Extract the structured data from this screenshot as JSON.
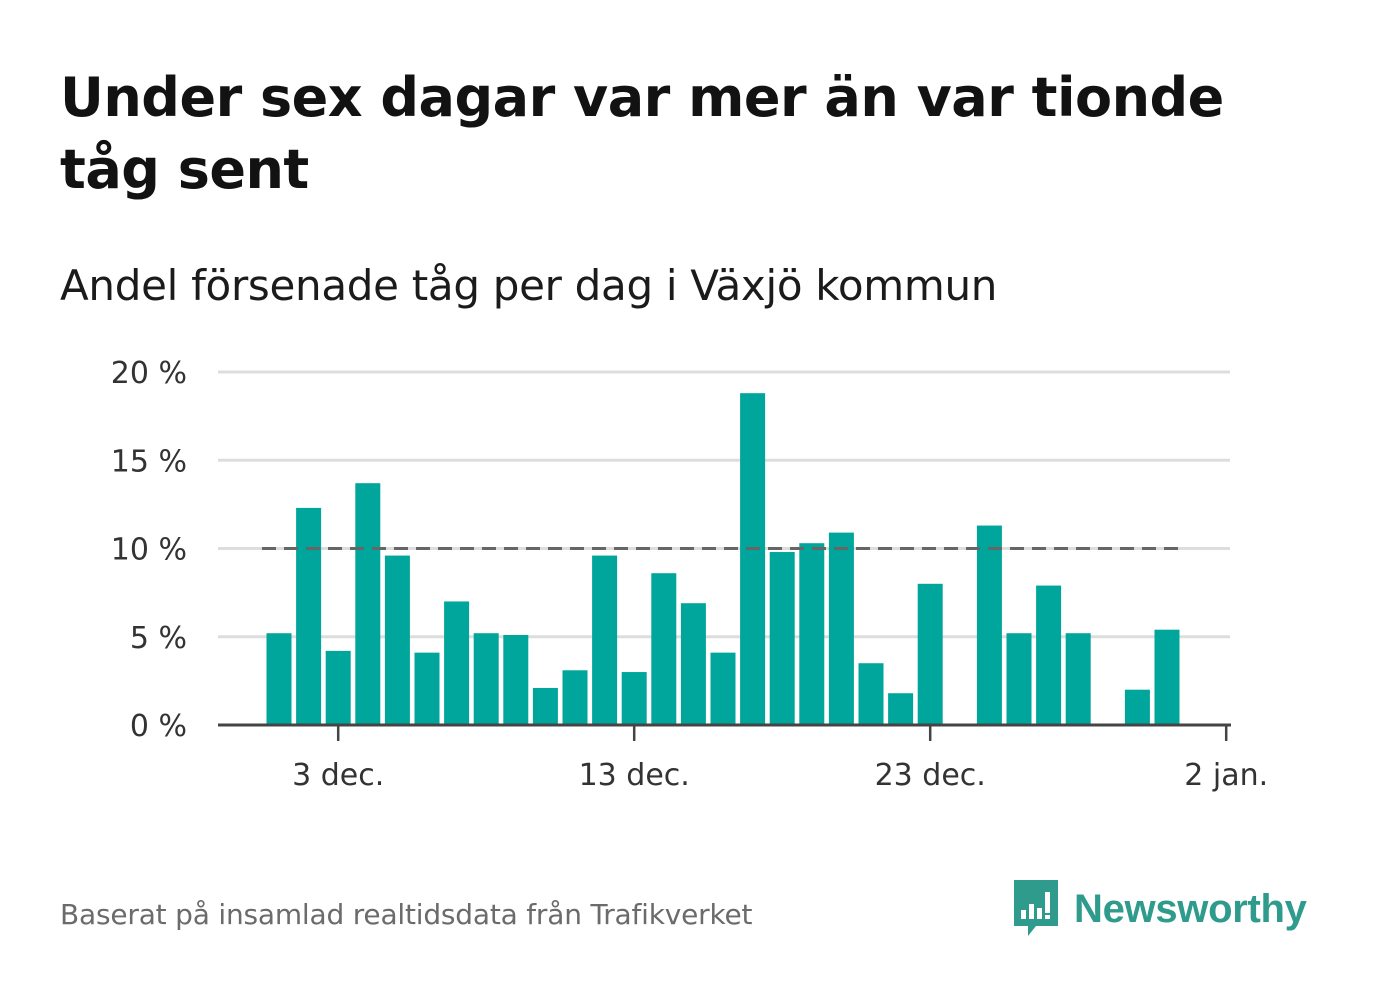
{
  "title": "Under sex dagar var mer än var tionde tåg sent",
  "subtitle": "Andel försenade tåg per dag i Växjö kommun",
  "footer": "Baserat på insamlad realtidsdata från Trafikverket",
  "brand": "Newsworthy",
  "colors": {
    "bar": "#00a59b",
    "reference": "#666666",
    "brand": "#2f9b8d"
  },
  "chart_data": {
    "type": "bar",
    "x": [
      "2020-12-01",
      "2020-12-02",
      "2020-12-03",
      "2020-12-04",
      "2020-12-05",
      "2020-12-06",
      "2020-12-07",
      "2020-12-08",
      "2020-12-09",
      "2020-12-10",
      "2020-12-11",
      "2020-12-12",
      "2020-12-13",
      "2020-12-14",
      "2020-12-15",
      "2020-12-16",
      "2020-12-17",
      "2020-12-18",
      "2020-12-19",
      "2020-12-20",
      "2020-12-21",
      "2020-12-22",
      "2020-12-23",
      "2020-12-24",
      "2020-12-25",
      "2020-12-26",
      "2020-12-27",
      "2020-12-28",
      "2020-12-29",
      "2020-12-30",
      "2020-12-31",
      "2021-01-01"
    ],
    "values": [
      5.2,
      12.3,
      4.2,
      13.7,
      9.6,
      4.1,
      7.0,
      5.2,
      5.1,
      2.1,
      3.1,
      9.6,
      3.0,
      8.6,
      6.9,
      4.1,
      18.8,
      9.8,
      10.3,
      10.9,
      3.5,
      1.8,
      8.0,
      null,
      11.3,
      5.2,
      7.9,
      5.2,
      null,
      2.0,
      5.4,
      null
    ],
    "xticks": [
      {
        "date": "2020-12-03",
        "label": "3 dec."
      },
      {
        "date": "2020-12-13",
        "label": "13 dec."
      },
      {
        "date": "2020-12-23",
        "label": "23 dec."
      },
      {
        "date": "2021-01-02",
        "label": "2 jan."
      }
    ],
    "yticks": [
      {
        "value": 0,
        "label": "0 %"
      },
      {
        "value": 5,
        "label": "5 %"
      },
      {
        "value": 10,
        "label": "10 %"
      },
      {
        "value": 15,
        "label": "15 %"
      },
      {
        "value": 20,
        "label": "20 %"
      }
    ],
    "ylim": [
      0,
      20
    ],
    "reference_line": 10,
    "grid": true
  }
}
